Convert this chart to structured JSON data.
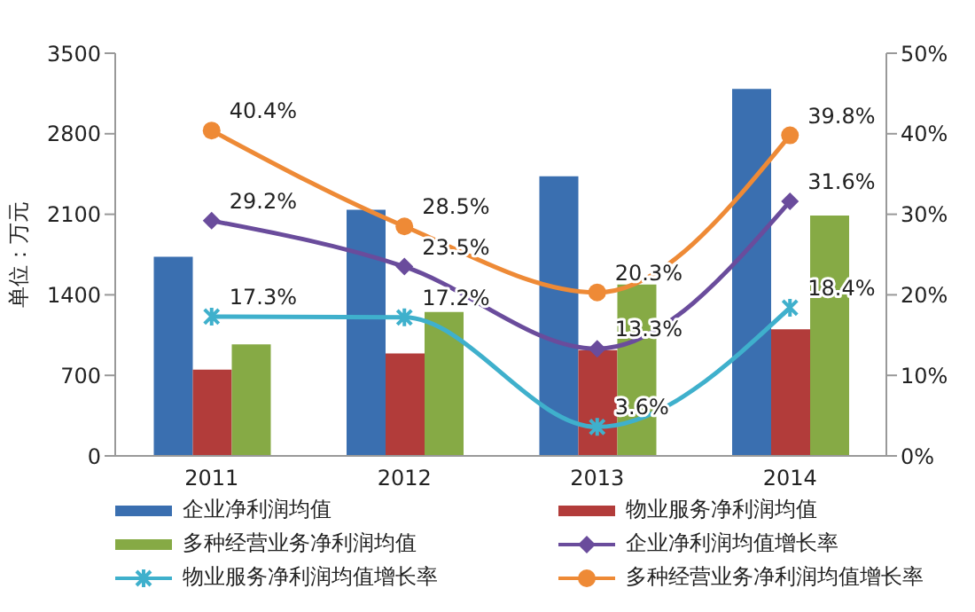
{
  "chart_data": {
    "type": "bar",
    "ylabel": "单位：万元",
    "categories": [
      "2011",
      "2012",
      "2013",
      "2014"
    ],
    "ylim": [
      0,
      3500
    ],
    "yticks": [
      0,
      700,
      1400,
      2100,
      2800,
      3500
    ],
    "y2lim": [
      0,
      50
    ],
    "y2ticks": [
      {
        "value": 0,
        "label": "0%"
      },
      {
        "value": 10,
        "label": "10%"
      },
      {
        "value": 20,
        "label": "20%"
      },
      {
        "value": 30,
        "label": "30%"
      },
      {
        "value": 40,
        "label": "40%"
      },
      {
        "value": 50,
        "label": "50%"
      }
    ],
    "legend": "bottom",
    "series": [
      {
        "name": "企业净利润均值",
        "color": "#3a6fb0",
        "values": [
          1730,
          2140,
          2430,
          3190
        ]
      },
      {
        "name": "物业服务净利润均值",
        "color": "#b23c3a",
        "values": [
          750,
          890,
          920,
          1100
        ]
      },
      {
        "name": "多种经营业务净利润均值",
        "color": "#86aa45",
        "values": [
          970,
          1250,
          1490,
          2090
        ]
      },
      {
        "name": "企业净利润均值增长率",
        "type": "line",
        "axis": "y2",
        "marker": "diamond",
        "color": "#6a4c9c",
        "values": [
          29.2,
          23.5,
          13.3,
          31.6
        ],
        "value_labels": [
          "29.2%",
          "23.5%",
          "13.3%",
          "31.6%"
        ]
      },
      {
        "name": "物业服务净利润均值增长率",
        "type": "line",
        "axis": "y2",
        "marker": "cross",
        "color": "#3fb0cc",
        "values": [
          17.3,
          17.2,
          3.6,
          18.4
        ],
        "value_labels": [
          "17.3%",
          "17.2%",
          "3.6%",
          "18.4%"
        ]
      },
      {
        "name": "多种经营业务净利润均值增长率",
        "type": "line",
        "axis": "y2",
        "marker": "circle",
        "color": "#ee8a36",
        "values": [
          40.4,
          28.5,
          20.3,
          39.8
        ],
        "value_labels": [
          "40.4%",
          "28.5%",
          "20.3%",
          "39.8%"
        ]
      }
    ]
  }
}
